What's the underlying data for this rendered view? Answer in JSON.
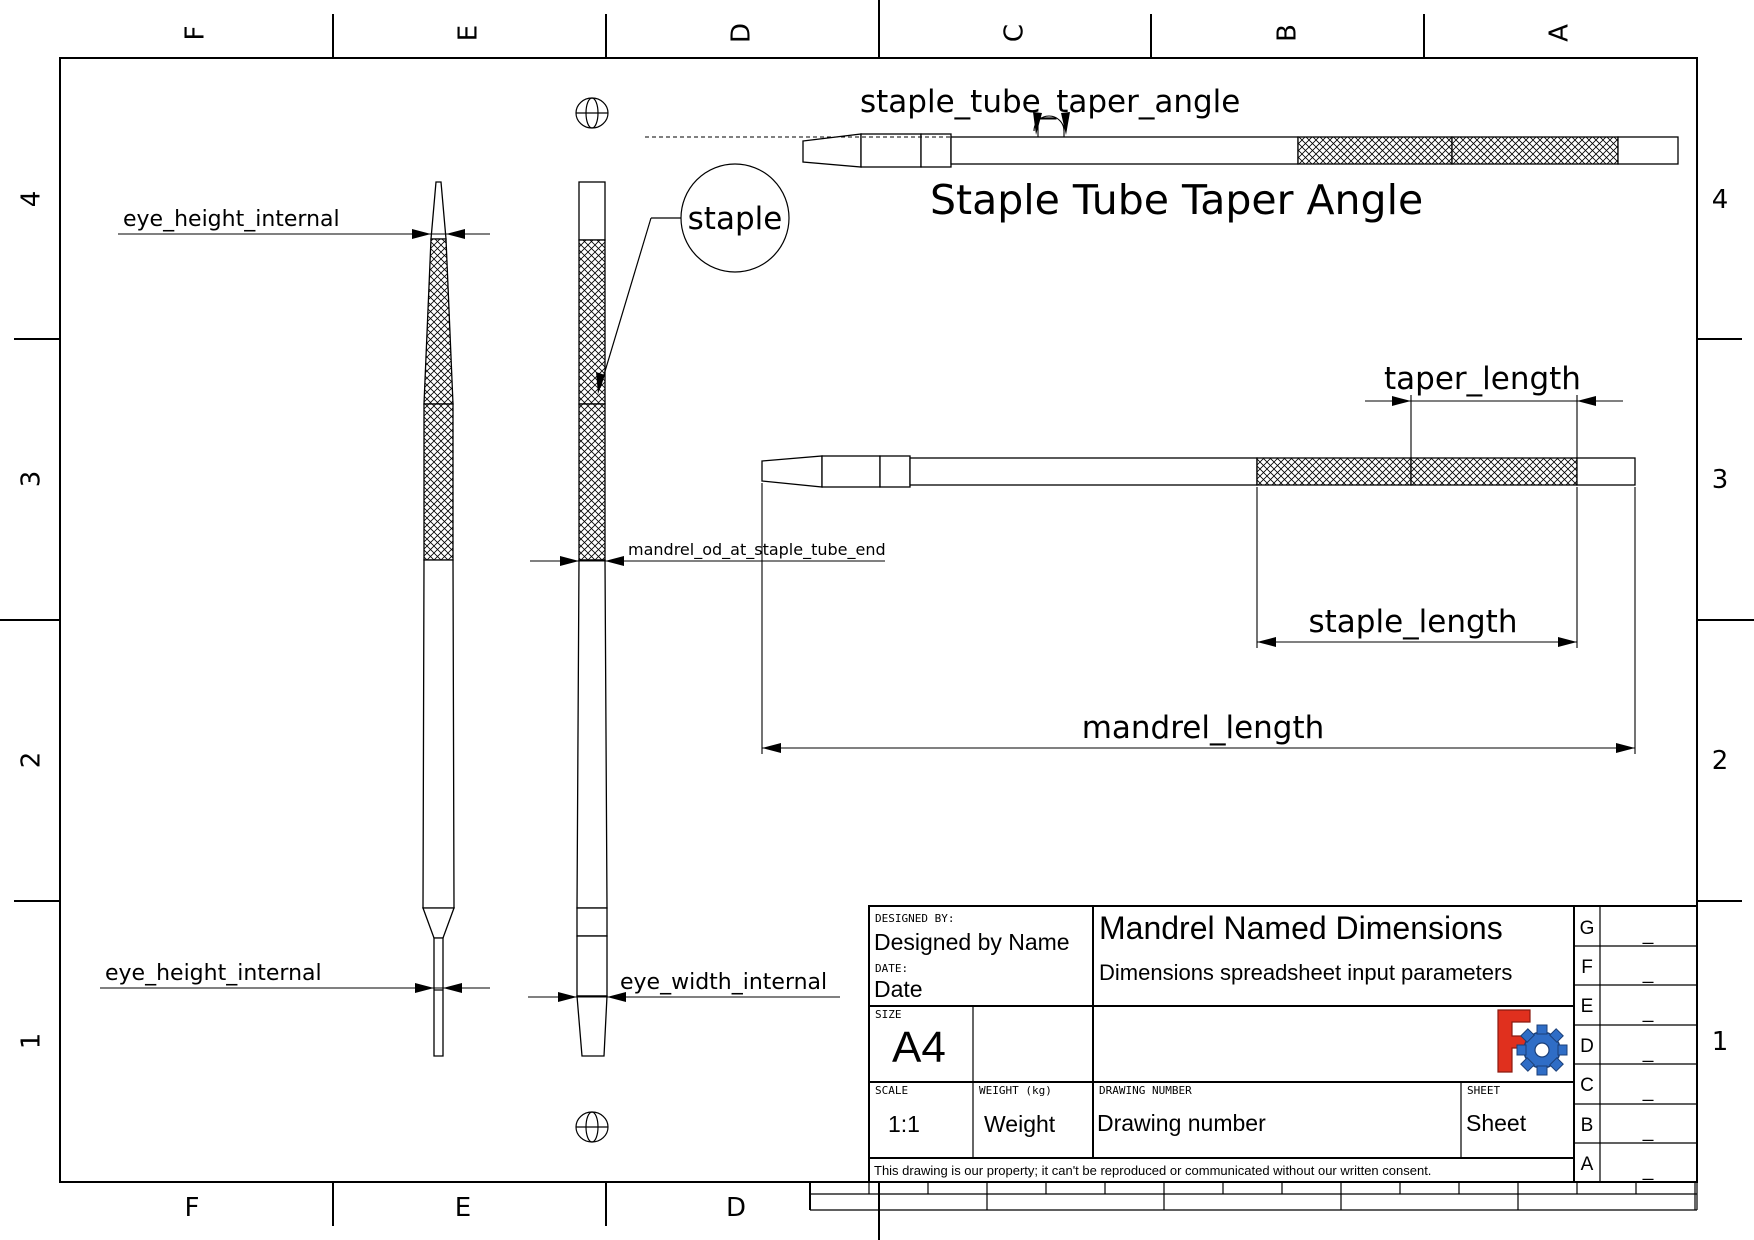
{
  "zones": {
    "columns": [
      "F",
      "E",
      "D",
      "C",
      "B",
      "A"
    ],
    "bottom_columns": [
      "F",
      "E",
      "D"
    ],
    "rows": [
      "4",
      "3",
      "2",
      "1"
    ]
  },
  "views": {
    "top_view_caption": "Staple Tube Taper Angle",
    "balloon": "staple"
  },
  "dimensions": {
    "staple_tube_taper_angle": "staple_tube_taper_angle",
    "eye_height_internal_top": "eye_height_internal",
    "eye_height_internal_bottom": "eye_height_internal",
    "mandrel_od_at_staple_tube_end": "mandrel_od_at_staple_tube_end",
    "eye_width_internal": "eye_width_internal",
    "taper_length": "taper_length",
    "staple_length": "staple_length",
    "mandrel_length": "mandrel_length"
  },
  "title_block": {
    "designed_by_label": "DESIGNED BY:",
    "designed_by": "Designed by Name",
    "date_label": "DATE:",
    "date": "Date",
    "size_label": "SIZE",
    "size": "A4",
    "title": "Mandrel Named Dimensions",
    "subtitle": "Dimensions spreadsheet input parameters",
    "scale_label": "SCALE",
    "scale": "1:1",
    "weight_label": "WEIGHT (kg)",
    "weight": "Weight",
    "drawing_number_label": "DRAWING NUMBER",
    "drawing_number": "Drawing number",
    "sheet_label": "SHEET",
    "sheet": "Sheet",
    "property_note": "This drawing is our property; it can't be reproduced or communicated without our written consent.",
    "revisions": [
      {
        "letter": "G",
        "value": "_"
      },
      {
        "letter": "F",
        "value": "_"
      },
      {
        "letter": "E",
        "value": "_"
      },
      {
        "letter": "D",
        "value": "_"
      },
      {
        "letter": "C",
        "value": "_"
      },
      {
        "letter": "B",
        "value": "_"
      },
      {
        "letter": "A",
        "value": "_"
      }
    ],
    "logo_colors": {
      "f": "#e0301e",
      "gear": "#2f6dc6"
    }
  }
}
